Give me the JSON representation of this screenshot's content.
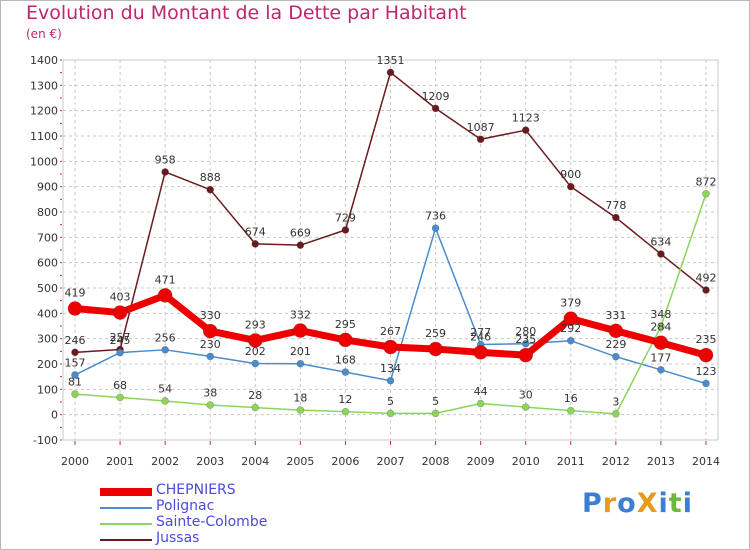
{
  "header": {
    "title": "Evolution du Montant de la Dette par Habitant",
    "subtitle": "(en €)"
  },
  "colors": {
    "title": "#c0266c",
    "grid": "#c8c8c8",
    "axis_ticks": "#c0266c"
  },
  "chart_data": {
    "type": "line",
    "x": [
      "2000",
      "2001",
      "2002",
      "2003",
      "2004",
      "2005",
      "2006",
      "2007",
      "2008",
      "2009",
      "2010",
      "2011",
      "2012",
      "2013",
      "2014"
    ],
    "ylim": [
      -100,
      1400
    ],
    "yticks": [
      -100,
      0,
      100,
      200,
      300,
      400,
      500,
      600,
      700,
      800,
      900,
      1000,
      1100,
      1200,
      1300,
      1400
    ],
    "grid": "dashed horizontal",
    "legend_position": "bottom-left",
    "series": [
      {
        "name": "Jussas",
        "color": "#6b1a1f",
        "width": 1.5,
        "marker": 3.5,
        "values": [
          246,
          257,
          958,
          888,
          674,
          669,
          729,
          1351,
          1209,
          1087,
          1123,
          900,
          778,
          634,
          492
        ]
      },
      {
        "name": "Polignac",
        "color": "#4a8ccc",
        "width": 1.5,
        "marker": 3.5,
        "values": [
          157,
          245,
          256,
          230,
          202,
          201,
          168,
          134,
          736,
          277,
          280,
          292,
          229,
          177,
          123
        ]
      },
      {
        "name": "Sainte-Colombe",
        "color": "#8cd45a",
        "width": 1.5,
        "marker": 3.5,
        "values": [
          81,
          68,
          54,
          38,
          28,
          18,
          12,
          5,
          5,
          44,
          30,
          16,
          3,
          348,
          872
        ]
      },
      {
        "name": "CHEPNIERS",
        "color": "#ee0000",
        "width": 7,
        "marker": 7,
        "values": [
          419,
          403,
          471,
          330,
          293,
          332,
          295,
          267,
          259,
          246,
          235,
          379,
          331,
          284,
          235
        ]
      }
    ]
  },
  "legend": [
    {
      "label": "CHEPNIERS",
      "color": "#ee0000",
      "thickness": 8,
      "text_color": "#4b4bd8"
    },
    {
      "label": "Polignac",
      "color": "#4a8ccc",
      "thickness": 2,
      "text_color": "#4b4bd8"
    },
    {
      "label": "Sainte-Colombe",
      "color": "#8cd45a",
      "thickness": 2,
      "text_color": "#4b4bd8"
    },
    {
      "label": "Jussas",
      "color": "#6b1a1f",
      "thickness": 2,
      "text_color": "#4b4bd8"
    }
  ],
  "logo": {
    "text": "ProXiti",
    "letters": [
      {
        "ch": "P",
        "color": "#3a7fd0"
      },
      {
        "ch": "r",
        "color": "#e69a1e"
      },
      {
        "ch": "o",
        "color": "#3a7fd0"
      },
      {
        "ch": "X",
        "color": "#e69a1e"
      },
      {
        "ch": "i",
        "color": "#3a7fd0"
      },
      {
        "ch": "t",
        "color": "#6cb83a"
      },
      {
        "ch": "i",
        "color": "#3a7fd0"
      }
    ]
  }
}
